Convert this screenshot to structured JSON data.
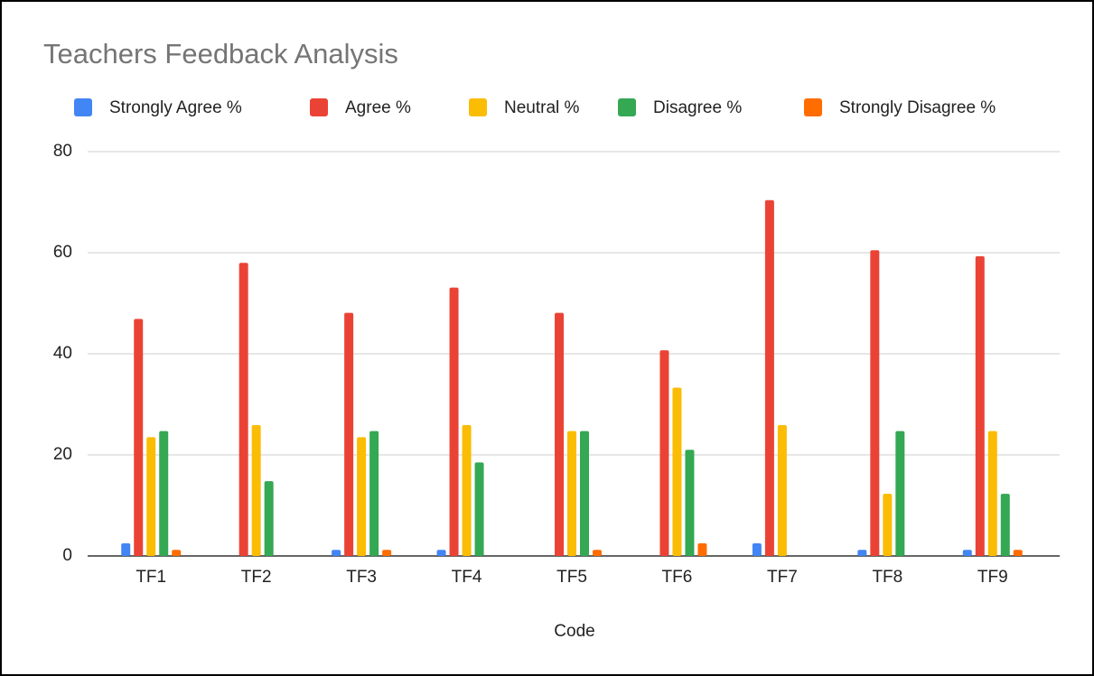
{
  "chart_data": {
    "type": "bar",
    "title": "Teachers Feedback Analysis",
    "x_label": "Code",
    "categories": [
      "TF1",
      "TF2",
      "TF3",
      "TF4",
      "TF5",
      "TF6",
      "TF7",
      "TF8",
      "TF9"
    ],
    "series": [
      {
        "name": "Strongly Agree %",
        "color": "#4285f4",
        "values": [
          2.5,
          0,
          1.2,
          1.2,
          0,
          0,
          2.5,
          1.2,
          1.2
        ]
      },
      {
        "name": "Agree %",
        "color": "#ea4335",
        "values": [
          46.9,
          58,
          48.1,
          53.1,
          48.1,
          40.7,
          70.4,
          60.5,
          59.3
        ]
      },
      {
        "name": "Neutral %",
        "color": "#fbbc04",
        "values": [
          23.5,
          25.9,
          23.5,
          25.9,
          24.7,
          33.3,
          25.9,
          12.3,
          24.7
        ]
      },
      {
        "name": "Disagree %",
        "color": "#34a853",
        "values": [
          24.7,
          14.8,
          24.7,
          18.5,
          24.7,
          21,
          0,
          24.7,
          12.3
        ]
      },
      {
        "name": "Strongly Disagree %",
        "color": "#ff6d01",
        "values": [
          1.2,
          0,
          1.2,
          0,
          1.2,
          2.5,
          0,
          0,
          1.2
        ]
      }
    ],
    "ylim": [
      0,
      80
    ],
    "yticks": [
      0,
      20,
      40,
      60,
      80
    ],
    "grid": true,
    "legend": "top"
  }
}
